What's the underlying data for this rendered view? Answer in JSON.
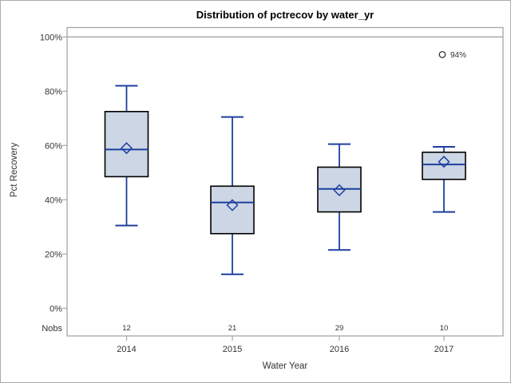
{
  "chart_data": {
    "type": "boxplot",
    "title": "Distribution of pctrecov by water_yr",
    "xlabel": "Water Year",
    "ylabel": "Pct Recovery",
    "ylim": [
      0,
      100
    ],
    "yticks": [
      0,
      20,
      40,
      60,
      80,
      100
    ],
    "ytick_suffix": "%",
    "refline": 100,
    "grid": false,
    "nobs_row_label": "Nobs",
    "categories": [
      "2014",
      "2015",
      "2016",
      "2017"
    ],
    "nobs": [
      "12",
      "21",
      "29",
      "10"
    ],
    "boxes": [
      {
        "category": "2014",
        "whisker_low": 30.5,
        "q1": 48.5,
        "median": 58.5,
        "mean": 59,
        "q3": 72.5,
        "whisker_high": 82,
        "outliers": []
      },
      {
        "category": "2015",
        "whisker_low": 12.5,
        "q1": 27.5,
        "median": 39,
        "mean": 38,
        "q3": 45,
        "whisker_high": 70.5,
        "outliers": []
      },
      {
        "category": "2016",
        "whisker_low": 21.5,
        "q1": 35.5,
        "median": 44,
        "mean": 43.5,
        "q3": 52,
        "whisker_high": 60.5,
        "outliers": []
      },
      {
        "category": "2017",
        "whisker_low": 35.5,
        "q1": 47.5,
        "median": 53,
        "mean": 54,
        "q3": 57.5,
        "whisker_high": 59.5,
        "outliers": [
          {
            "value": 93.5,
            "label": "94%"
          }
        ]
      }
    ],
    "colors": {
      "box_fill": "#ccd6e4",
      "box_outline": "#000000",
      "line_blue": "#1e3f9e",
      "outlier_stroke": "#333333",
      "axis_gray": "#a3a6a9",
      "text": "#333333"
    }
  }
}
